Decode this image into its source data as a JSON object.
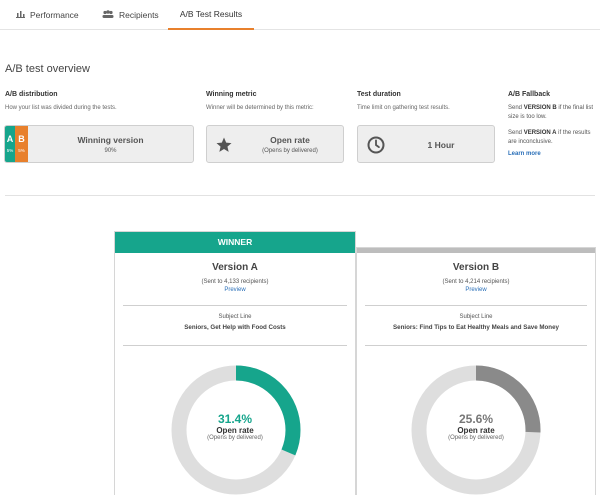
{
  "tabs": [
    {
      "label": "Performance",
      "icon": "bar-chart-icon"
    },
    {
      "label": "Recipients",
      "icon": "people-icon"
    },
    {
      "label": "A/B Test Results",
      "active": true
    }
  ],
  "overview": {
    "title": "A/B test overview",
    "distribution": {
      "heading": "A/B distribution",
      "desc": "How your list was divided during the tests.",
      "a_letter": "A",
      "b_letter": "B",
      "a_pct_label": "5%",
      "b_pct_label": "5%",
      "a_share": 5,
      "b_share": 5,
      "winning_label": "Winning version",
      "winning_pct": "90%"
    },
    "metric": {
      "heading": "Winning metric",
      "desc": "Winner will be determined by this metric:",
      "value": "Open rate",
      "sub": "(Opens by delivered)",
      "icon": "star-icon"
    },
    "duration": {
      "heading": "Test duration",
      "desc": "Time limit on gathering test results.",
      "value": "1 Hour",
      "icon": "clock-icon"
    },
    "fallback": {
      "heading": "A/B Fallback",
      "line1_pre": "Send ",
      "line1_bold": "VERSION B",
      "line1_post": " if the final list size is too low.",
      "line2_pre": "Send ",
      "line2_bold": "VERSION A",
      "line2_post": " if the results are inconclusive.",
      "link": "Learn more"
    }
  },
  "versions": [
    {
      "badge": "WINNER",
      "title": "Version A",
      "sent": "(Sent to 4,133 recipients)",
      "preview": "Preview",
      "subject_heading": "Subject Line",
      "subject": "Seniors, Get Help with Food Costs",
      "open_rate": 31.4,
      "open_rate_label": "31.4%",
      "metric_label": "Open rate",
      "metric_sub": "(Opens by delivered)",
      "color": "#16a58c"
    },
    {
      "title": "Version B",
      "sent": "(Sent to 4,214 recipients)",
      "preview": "Preview",
      "subject_heading": "Subject Line",
      "subject": "Seniors: Find Tips to Eat Healthy Meals and Save Money",
      "open_rate": 25.6,
      "open_rate_label": "25.6%",
      "metric_label": "Open rate",
      "metric_sub": "(Opens by delivered)",
      "color": "#8a8a8a"
    }
  ],
  "colors": {
    "accent_tab": "#e8802c",
    "winner": "#16a58c",
    "version_a": "#16a58c",
    "version_b": "#e8802c",
    "link": "#2a6fb8",
    "donut_track": "#dedede"
  }
}
